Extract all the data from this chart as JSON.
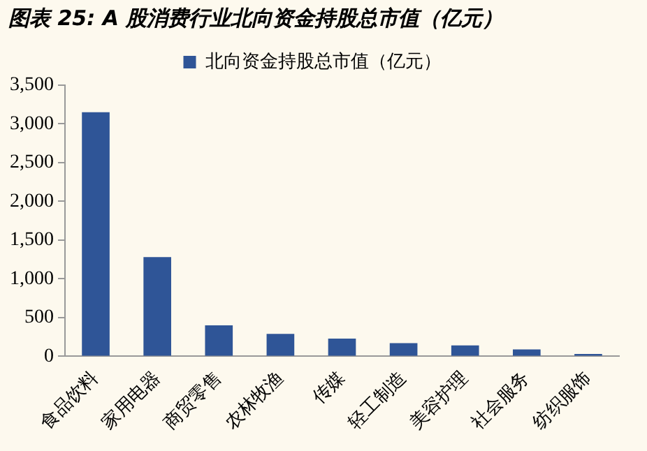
{
  "chart_data": {
    "type": "bar",
    "title": "图表 25: A 股消费行业北向资金持股总市值（亿元）",
    "categories": [
      "食品饮料",
      "家用电器",
      "商贸零售",
      "农林牧渔",
      "传媒",
      "轻工制造",
      "美容护理",
      "社会服务",
      "纺织服饰"
    ],
    "series": [
      {
        "name": "北向资金持股总市值（亿元）",
        "color": "#2f5597",
        "values": [
          3150,
          1280,
          400,
          290,
          230,
          170,
          140,
          90,
          30
        ]
      }
    ],
    "ylim": [
      0,
      3500
    ],
    "yticks": [
      0,
      500,
      {
        "value": 1000,
        "label": "1,000"
      },
      {
        "value": 1500,
        "label": "1,500"
      },
      {
        "value": 2000,
        "label": "2,000"
      },
      {
        "value": 2500,
        "label": "2,500"
      },
      {
        "value": 3000,
        "label": "3,000"
      },
      {
        "value": 3500,
        "label": "3,500"
      }
    ],
    "grid": false,
    "legend": "top"
  }
}
